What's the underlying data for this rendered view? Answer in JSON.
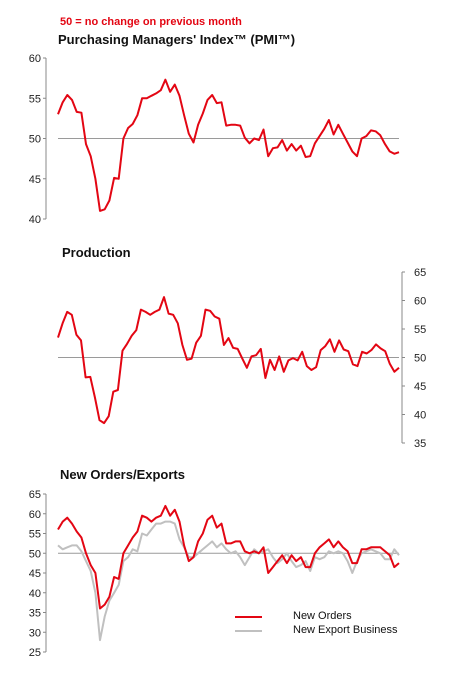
{
  "note": "50 =  no change on previous month",
  "colors": {
    "red": "#e30613",
    "grey": "#c0c0c0",
    "axis": "#888888"
  },
  "chart_data": [
    {
      "type": "line",
      "title": "Purchasing Managers' Index™ (PMI™)",
      "ylim": [
        40,
        60
      ],
      "yticks": [
        40,
        45,
        50,
        55,
        60
      ],
      "axis_side": "left",
      "reference_line": 50,
      "series": [
        {
          "color": "#e30613",
          "values": [
            53,
            54.5,
            55.4,
            54.8,
            53.3,
            53.2,
            49.3,
            47.8,
            45,
            41,
            41.2,
            42.3,
            45.1,
            45,
            50,
            51.3,
            51.8,
            52.9,
            55,
            55,
            55.3,
            55.6,
            56,
            57.3,
            55.8,
            56.7,
            55.3,
            52.9,
            50.6,
            49.5,
            51.7,
            53.1,
            54.8,
            55.4,
            54.4,
            54.5,
            51.6,
            51.7,
            51.7,
            51.6,
            50.1,
            49.4,
            50,
            49.8,
            51.1,
            47.8,
            48.8,
            48.9,
            49.8,
            48.5,
            49.3,
            48.5,
            49.1,
            47.7,
            47.8,
            49.4,
            50.3,
            51.2,
            52.3,
            50.5,
            51.7,
            50.6,
            49.5,
            48.4,
            47.8,
            50,
            50.3,
            51,
            50.9,
            50.4,
            49.3,
            48.4,
            48.1,
            48.3
          ]
        }
      ]
    },
    {
      "type": "line",
      "title": "Production",
      "ylim": [
        35,
        65
      ],
      "yticks": [
        35,
        40,
        45,
        50,
        55,
        60,
        65
      ],
      "axis_side": "right",
      "reference_line": 50,
      "series": [
        {
          "color": "#e30613",
          "values": [
            53.5,
            56,
            58,
            57.5,
            54,
            53,
            46.5,
            46.6,
            43,
            39,
            38.5,
            39.7,
            44,
            44.3,
            51.2,
            52.4,
            53.8,
            54.8,
            58.4,
            58,
            57.5,
            58,
            58.4,
            60.6,
            57.7,
            57.5,
            56,
            52.2,
            49.6,
            49.8,
            52.6,
            53.8,
            58.4,
            58.2,
            57.2,
            56.8,
            52.2,
            53.4,
            51.7,
            51.5,
            49.8,
            48.2,
            50.2,
            50.4,
            51.5,
            46.4,
            49.6,
            47.8,
            50.2,
            47.5,
            49.5,
            49.9,
            49.5,
            51,
            48.5,
            47.8,
            48.3,
            51.3,
            52,
            53.2,
            51,
            53,
            51.4,
            51.1,
            48.8,
            48.5,
            51,
            50.7,
            51.3,
            52.3,
            51.6,
            51.1,
            48.9,
            47.5,
            48.2
          ]
        }
      ]
    },
    {
      "type": "line",
      "title": "New Orders/Exports",
      "ylim": [
        25,
        65
      ],
      "yticks": [
        25,
        30,
        35,
        40,
        45,
        50,
        55,
        60,
        65
      ],
      "axis_side": "left",
      "reference_line": 50,
      "legend_position": "bottom-right",
      "series": [
        {
          "name": "New Orders",
          "color": "#e30613",
          "values": [
            56,
            58,
            59,
            57.5,
            55.5,
            54,
            50,
            47,
            45,
            36,
            37,
            39,
            44,
            43.5,
            50,
            52,
            54,
            55.5,
            59.5,
            59,
            58,
            59,
            59.5,
            62,
            59.5,
            61,
            58,
            52,
            48,
            49,
            53,
            55,
            58.5,
            59.5,
            56.5,
            57.5,
            52.5,
            52.5,
            53,
            53,
            50.5,
            50,
            50.5,
            50,
            51.5,
            45,
            46.5,
            48,
            49.5,
            47.5,
            49.5,
            48,
            49,
            46.5,
            46.5,
            50,
            51.5,
            52.5,
            53.5,
            51.5,
            53,
            51.5,
            50.5,
            47.5,
            47.5,
            51,
            51,
            51.5,
            51.5,
            51.5,
            50.5,
            49.5,
            46.5,
            47.5
          ]
        },
        {
          "name": "New Export Business",
          "color": "#c0c0c0",
          "values": [
            52,
            51,
            51.5,
            52,
            52,
            50.5,
            48,
            45.5,
            40,
            28,
            34,
            38,
            40,
            42,
            48,
            49,
            51,
            50.5,
            55,
            54.5,
            56,
            57.5,
            57.5,
            58,
            58,
            57.5,
            53.5,
            51.5,
            49,
            49,
            50,
            51,
            52,
            53,
            51.5,
            52.5,
            51,
            50,
            50.5,
            49,
            47,
            49,
            51,
            50,
            50.5,
            51,
            49,
            47.5,
            48.5,
            50,
            48,
            46.5,
            47,
            48,
            45.5,
            49,
            48.5,
            49,
            50.5,
            50,
            50.5,
            50,
            48,
            45,
            48,
            50,
            50.5,
            51,
            50.5,
            50,
            48.5,
            48.5,
            51,
            49.5
          ]
        }
      ]
    }
  ]
}
